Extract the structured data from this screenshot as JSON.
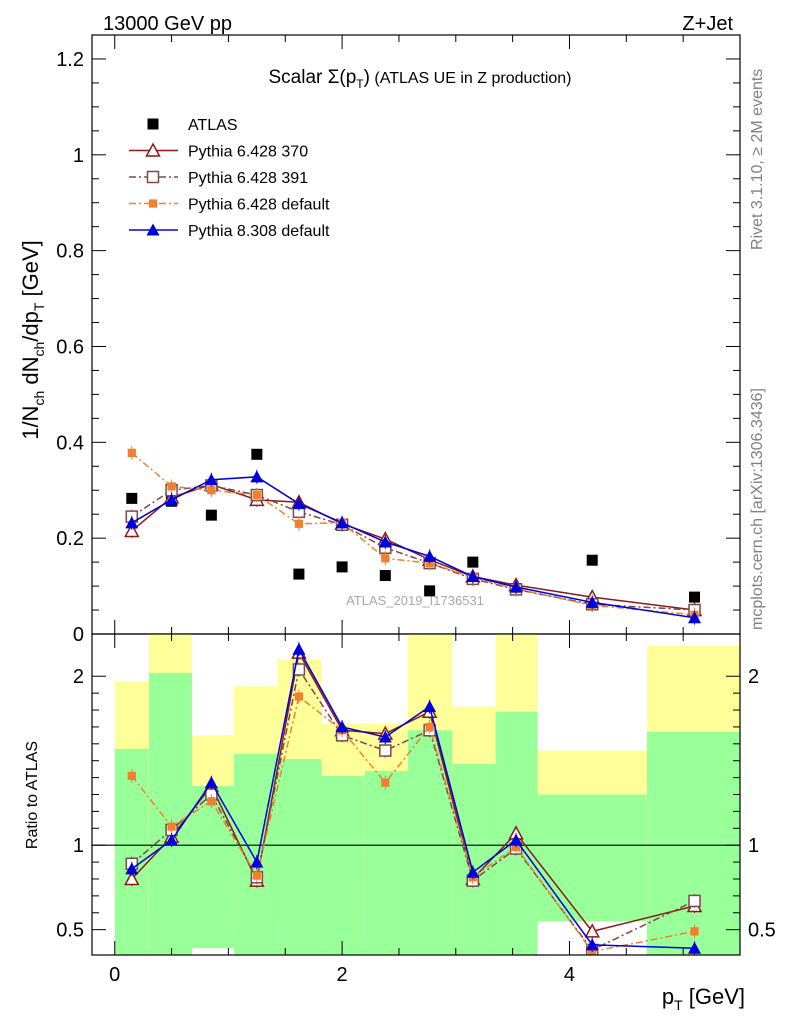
{
  "header": {
    "energy_label": "13000 GeV pp",
    "process_label": "Z+Jet"
  },
  "side_labels": {
    "rivet": "Rivet 3.1.10, ≥ 2M events",
    "site": "mcplots.cern.ch [arXiv:1306.3436]"
  },
  "chart_data": [
    {
      "type": "scatter",
      "panel": "main",
      "title": "Scalar Σ(p_T) (ATLAS UE in Z production)",
      "ylabel": "1/N_ch dN_ch/dp_T [GeV]",
      "xlim": [
        -0.2,
        5.5
      ],
      "ylim": [
        0,
        1.25
      ],
      "yticks": [
        0,
        0.2,
        0.4,
        0.6,
        0.8,
        1,
        1.2
      ],
      "ytick_labels": [
        "0",
        "0.2",
        "0.4",
        "0.6",
        "0.8",
        "1",
        "1.2"
      ],
      "watermark": "ATLAS_2019_I1736531",
      "x": [
        0.15,
        0.5,
        0.85,
        1.25,
        1.62,
        2.0,
        2.38,
        2.77,
        3.15,
        3.53,
        4.2,
        5.1
      ],
      "series": [
        {
          "name": "ATLAS",
          "color": "#000000",
          "marker": "square-filled",
          "line": "none",
          "values": [
            0.283,
            0.277,
            0.248,
            0.375,
            0.125,
            0.14,
            0.122,
            0.09,
            0.15,
            0.095,
            0.154,
            0.077
          ]
        },
        {
          "name": "Pythia 6.428 370",
          "color": "#8b1a1a",
          "marker": "triangle-open",
          "line": "solid",
          "values": [
            0.215,
            0.285,
            0.312,
            0.28,
            0.275,
            0.23,
            0.198,
            0.155,
            0.12,
            0.102,
            0.077,
            0.05
          ]
        },
        {
          "name": "Pythia 6.428 391",
          "color": "#7a4a4a",
          "marker": "square-open",
          "line": "dashdot",
          "values": [
            0.245,
            0.3,
            0.31,
            0.29,
            0.255,
            0.228,
            0.18,
            0.148,
            0.115,
            0.093,
            0.062,
            0.05
          ]
        },
        {
          "name": "Pythia 6.428 default",
          "color": "#f08030",
          "marker": "square-small",
          "line": "dashdot",
          "values": [
            0.378,
            0.308,
            0.3,
            0.29,
            0.23,
            0.232,
            0.158,
            0.148,
            0.118,
            0.094,
            0.06,
            0.04
          ]
        },
        {
          "name": "Pythia 8.308 default",
          "color": "#0000dd",
          "marker": "triangle-filled",
          "line": "solid",
          "values": [
            0.232,
            0.28,
            0.322,
            0.328,
            0.272,
            0.232,
            0.192,
            0.162,
            0.12,
            0.098,
            0.066,
            0.034
          ]
        }
      ]
    },
    {
      "type": "scatter",
      "panel": "ratio",
      "ylabel": "Ratio to ATLAS",
      "xlabel": "p_T [GeV]",
      "xlim": [
        -0.2,
        5.5
      ],
      "ylim": [
        0.35,
        2.25
      ],
      "xticks": [
        0,
        2,
        4
      ],
      "xtick_labels": [
        "0",
        "2",
        "4"
      ],
      "yticks": [
        0.5,
        1,
        2
      ],
      "ytick_labels": [
        "0.5",
        "1",
        "2"
      ],
      "band_colors": {
        "outer": "#ffff99",
        "inner": "#99ff99"
      },
      "bands": [
        {
          "x0": 0.0,
          "x1": 0.3,
          "inner": [
            0.35,
            1.57
          ],
          "outer": [
            0.53,
            1.97
          ]
        },
        {
          "x0": 0.3,
          "x1": 0.68,
          "inner": [
            0.35,
            2.02
          ],
          "outer": [
            0.35,
            2.25
          ]
        },
        {
          "x0": 0.68,
          "x1": 1.05,
          "inner": [
            0.39,
            1.35
          ],
          "outer": [
            0.76,
            1.65
          ]
        },
        {
          "x0": 1.05,
          "x1": 1.43,
          "inner": [
            0.35,
            1.54
          ],
          "outer": [
            0.56,
            1.94
          ]
        },
        {
          "x0": 1.43,
          "x1": 1.82,
          "inner": [
            0.35,
            1.51
          ],
          "outer": [
            0.6,
            2.1
          ]
        },
        {
          "x0": 1.82,
          "x1": 2.2,
          "inner": [
            0.35,
            1.41
          ],
          "outer": [
            0.73,
            1.72
          ]
        },
        {
          "x0": 2.2,
          "x1": 2.58,
          "inner": [
            0.35,
            1.44
          ],
          "outer": [
            0.67,
            1.72
          ]
        },
        {
          "x0": 2.58,
          "x1": 2.97,
          "inner": [
            0.35,
            1.68
          ],
          "outer": [
            0.35,
            2.25
          ]
        },
        {
          "x0": 2.97,
          "x1": 3.35,
          "inner": [
            0.35,
            1.48
          ],
          "outer": [
            0.65,
            1.82
          ]
        },
        {
          "x0": 3.35,
          "x1": 3.72,
          "inner": [
            0.35,
            1.79
          ],
          "outer": [
            0.35,
            2.25
          ]
        },
        {
          "x0": 3.72,
          "x1": 4.68,
          "inner": [
            0.55,
            1.3
          ],
          "outer": [
            0.8,
            1.56
          ]
        },
        {
          "x0": 4.68,
          "x1": 5.52,
          "inner": [
            0.35,
            1.67
          ],
          "outer": [
            0.35,
            2.18
          ]
        }
      ],
      "x": [
        0.15,
        0.5,
        0.85,
        1.25,
        1.62,
        2.0,
        2.38,
        2.77,
        3.15,
        3.53,
        4.2,
        5.1
      ],
      "series": [
        {
          "name": "Pythia 6.428 370",
          "color": "#8b1a1a",
          "marker": "triangle-open",
          "line": "solid",
          "values": [
            0.8,
            1.05,
            1.35,
            0.79,
            2.14,
            1.68,
            1.66,
            1.79,
            0.8,
            1.07,
            0.49,
            0.64
          ]
        },
        {
          "name": "Pythia 6.428 391",
          "color": "#7a4a4a",
          "marker": "square-open",
          "line": "dashdot",
          "values": [
            0.89,
            1.09,
            1.3,
            0.81,
            2.04,
            1.65,
            1.56,
            1.68,
            0.79,
            0.98,
            0.38,
            0.67
          ]
        },
        {
          "name": "Pythia 6.428 default",
          "color": "#f08030",
          "marker": "square-small",
          "line": "dashdot",
          "values": [
            1.41,
            1.11,
            1.26,
            0.82,
            1.88,
            1.68,
            1.37,
            1.7,
            0.81,
            0.99,
            0.37,
            0.49
          ]
        },
        {
          "name": "Pythia 8.308 default",
          "color": "#0000dd",
          "marker": "triangle-filled",
          "line": "solid",
          "values": [
            0.86,
            1.03,
            1.37,
            0.9,
            2.16,
            1.7,
            1.64,
            1.82,
            0.84,
            1.03,
            0.41,
            0.39
          ]
        }
      ]
    }
  ]
}
